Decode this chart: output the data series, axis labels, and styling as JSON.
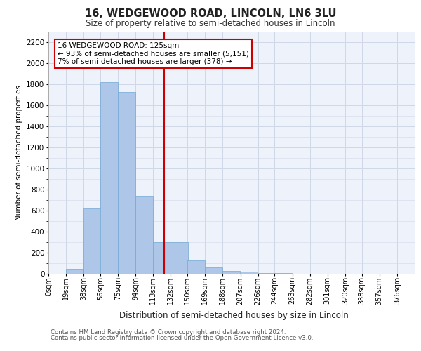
{
  "title1": "16, WEDGEWOOD ROAD, LINCOLN, LN6 3LU",
  "title2": "Size of property relative to semi-detached houses in Lincoln",
  "xlabel": "Distribution of semi-detached houses by size in Lincoln",
  "ylabel": "Number of semi-detached properties",
  "annotation_title": "16 WEDGEWOOD ROAD: 125sqm",
  "annotation_line1": "← 93% of semi-detached houses are smaller (5,151)",
  "annotation_line2": "7% of semi-detached houses are larger (378) →",
  "property_size": 125,
  "footer1": "Contains HM Land Registry data © Crown copyright and database right 2024.",
  "footer2": "Contains public sector information licensed under the Open Government Licence v3.0.",
  "bin_labels": [
    "0sqm",
    "19sqm",
    "38sqm",
    "56sqm",
    "75sqm",
    "94sqm",
    "113sqm",
    "132sqm",
    "150sqm",
    "169sqm",
    "188sqm",
    "207sqm",
    "226sqm",
    "244sqm",
    "263sqm",
    "282sqm",
    "301sqm",
    "320sqm",
    "338sqm",
    "357sqm",
    "376sqm"
  ],
  "bin_edges": [
    0,
    19,
    38,
    56,
    75,
    94,
    113,
    132,
    150,
    169,
    188,
    207,
    226,
    244,
    263,
    282,
    301,
    320,
    338,
    357,
    376
  ],
  "bar_heights": [
    0,
    50,
    620,
    1820,
    1730,
    740,
    300,
    300,
    130,
    60,
    30,
    20,
    10,
    5,
    2,
    1,
    0,
    0,
    0,
    0
  ],
  "bar_color": "#aec6e8",
  "bar_edgecolor": "#6fa8d4",
  "vline_x": 125,
  "vline_color": "#cc0000",
  "grid_color": "#d0d8e8",
  "bg_color": "#eef2fa",
  "ylim": [
    0,
    2300
  ],
  "yticks": [
    0,
    200,
    400,
    600,
    800,
    1000,
    1200,
    1400,
    1600,
    1800,
    2000,
    2200
  ],
  "annotation_box_color": "#cc0000",
  "annotation_bg": "#ffffff"
}
